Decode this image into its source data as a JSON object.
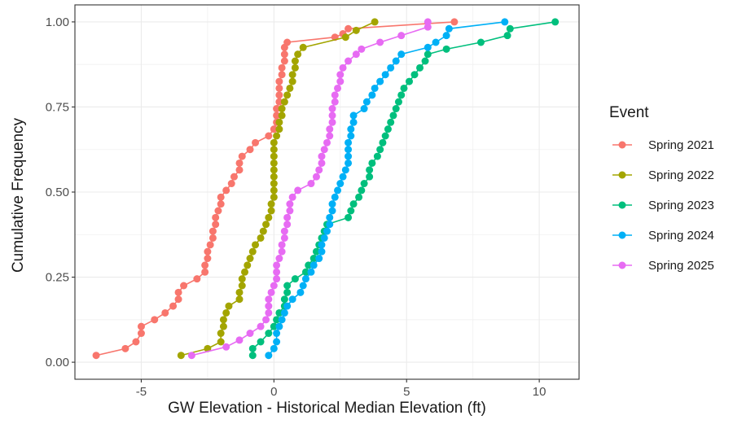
{
  "chart_data": {
    "type": "line",
    "xlabel": "GW Elevation - Historical Median Elevation (ft)",
    "ylabel": "Cumulative Frequency",
    "xlim": [
      -7.5,
      11.5
    ],
    "ylim": [
      -0.05,
      1.05
    ],
    "x_ticks": [
      -5,
      0,
      5,
      10
    ],
    "y_ticks": [
      0,
      0.25,
      0.5,
      0.75,
      1
    ],
    "x_tick_labels": [
      "-5",
      "0",
      "5",
      "10"
    ],
    "y_tick_labels": [
      "0.00",
      "0.25",
      "0.50",
      "0.75",
      "1.00"
    ],
    "grid": true,
    "legend": {
      "title": "Event",
      "position": "right"
    },
    "series": [
      {
        "name": "Spring 2021",
        "color": "#F8766D",
        "points": [
          [
            -6.7,
            0.02
          ],
          [
            -5.6,
            0.04
          ],
          [
            -5.2,
            0.06
          ],
          [
            -5.0,
            0.085
          ],
          [
            -5.0,
            0.105
          ],
          [
            -4.5,
            0.125
          ],
          [
            -4.1,
            0.145
          ],
          [
            -3.8,
            0.165
          ],
          [
            -3.6,
            0.185
          ],
          [
            -3.6,
            0.205
          ],
          [
            -3.4,
            0.225
          ],
          [
            -2.9,
            0.245
          ],
          [
            -2.6,
            0.265
          ],
          [
            -2.6,
            0.285
          ],
          [
            -2.5,
            0.305
          ],
          [
            -2.5,
            0.325
          ],
          [
            -2.4,
            0.345
          ],
          [
            -2.3,
            0.365
          ],
          [
            -2.3,
            0.385
          ],
          [
            -2.2,
            0.405
          ],
          [
            -2.2,
            0.425
          ],
          [
            -2.1,
            0.445
          ],
          [
            -2.0,
            0.465
          ],
          [
            -2.0,
            0.485
          ],
          [
            -1.8,
            0.505
          ],
          [
            -1.6,
            0.525
          ],
          [
            -1.5,
            0.545
          ],
          [
            -1.3,
            0.565
          ],
          [
            -1.3,
            0.585
          ],
          [
            -1.2,
            0.605
          ],
          [
            -0.9,
            0.625
          ],
          [
            -0.7,
            0.645
          ],
          [
            -0.2,
            0.665
          ],
          [
            0.0,
            0.685
          ],
          [
            0.1,
            0.705
          ],
          [
            0.1,
            0.725
          ],
          [
            0.1,
            0.745
          ],
          [
            0.2,
            0.765
          ],
          [
            0.2,
            0.785
          ],
          [
            0.2,
            0.805
          ],
          [
            0.2,
            0.825
          ],
          [
            0.3,
            0.845
          ],
          [
            0.3,
            0.865
          ],
          [
            0.4,
            0.885
          ],
          [
            0.4,
            0.905
          ],
          [
            0.4,
            0.925
          ],
          [
            0.5,
            0.94
          ],
          [
            2.3,
            0.955
          ],
          [
            2.6,
            0.965
          ],
          [
            2.8,
            0.98
          ],
          [
            6.8,
            1.0
          ]
        ]
      },
      {
        "name": "Spring 2022",
        "color": "#A3A500",
        "points": [
          [
            -3.5,
            0.02
          ],
          [
            -2.5,
            0.04
          ],
          [
            -2.0,
            0.06
          ],
          [
            -2.0,
            0.085
          ],
          [
            -1.9,
            0.105
          ],
          [
            -1.9,
            0.125
          ],
          [
            -1.8,
            0.145
          ],
          [
            -1.7,
            0.165
          ],
          [
            -1.3,
            0.185
          ],
          [
            -1.3,
            0.205
          ],
          [
            -1.2,
            0.225
          ],
          [
            -1.2,
            0.245
          ],
          [
            -1.1,
            0.265
          ],
          [
            -1.0,
            0.285
          ],
          [
            -0.9,
            0.305
          ],
          [
            -0.8,
            0.325
          ],
          [
            -0.7,
            0.345
          ],
          [
            -0.5,
            0.365
          ],
          [
            -0.4,
            0.385
          ],
          [
            -0.3,
            0.405
          ],
          [
            -0.2,
            0.425
          ],
          [
            -0.1,
            0.445
          ],
          [
            -0.1,
            0.465
          ],
          [
            0.0,
            0.485
          ],
          [
            0.0,
            0.505
          ],
          [
            0.0,
            0.525
          ],
          [
            0.0,
            0.545
          ],
          [
            0.0,
            0.565
          ],
          [
            0.0,
            0.585
          ],
          [
            0.0,
            0.605
          ],
          [
            0.0,
            0.625
          ],
          [
            0.0,
            0.645
          ],
          [
            0.1,
            0.665
          ],
          [
            0.2,
            0.685
          ],
          [
            0.2,
            0.705
          ],
          [
            0.3,
            0.725
          ],
          [
            0.3,
            0.745
          ],
          [
            0.4,
            0.765
          ],
          [
            0.5,
            0.785
          ],
          [
            0.6,
            0.805
          ],
          [
            0.7,
            0.825
          ],
          [
            0.7,
            0.845
          ],
          [
            0.8,
            0.865
          ],
          [
            0.8,
            0.885
          ],
          [
            0.9,
            0.905
          ],
          [
            1.1,
            0.925
          ],
          [
            2.7,
            0.955
          ],
          [
            3.1,
            0.975
          ],
          [
            3.8,
            1.0
          ]
        ]
      },
      {
        "name": "Spring 2023",
        "color": "#00BF7D",
        "points": [
          [
            -0.8,
            0.02
          ],
          [
            -0.8,
            0.04
          ],
          [
            -0.5,
            0.06
          ],
          [
            -0.2,
            0.085
          ],
          [
            0.0,
            0.105
          ],
          [
            0.1,
            0.125
          ],
          [
            0.2,
            0.145
          ],
          [
            0.4,
            0.165
          ],
          [
            0.4,
            0.185
          ],
          [
            0.5,
            0.205
          ],
          [
            0.5,
            0.225
          ],
          [
            0.8,
            0.245
          ],
          [
            1.2,
            0.265
          ],
          [
            1.3,
            0.285
          ],
          [
            1.5,
            0.305
          ],
          [
            1.6,
            0.325
          ],
          [
            1.7,
            0.345
          ],
          [
            1.8,
            0.365
          ],
          [
            1.9,
            0.385
          ],
          [
            2.0,
            0.405
          ],
          [
            2.8,
            0.425
          ],
          [
            2.9,
            0.445
          ],
          [
            3.0,
            0.465
          ],
          [
            3.2,
            0.485
          ],
          [
            3.3,
            0.505
          ],
          [
            3.4,
            0.525
          ],
          [
            3.6,
            0.545
          ],
          [
            3.6,
            0.565
          ],
          [
            3.7,
            0.585
          ],
          [
            3.9,
            0.605
          ],
          [
            4.0,
            0.625
          ],
          [
            4.1,
            0.645
          ],
          [
            4.2,
            0.665
          ],
          [
            4.3,
            0.685
          ],
          [
            4.4,
            0.705
          ],
          [
            4.5,
            0.725
          ],
          [
            4.6,
            0.745
          ],
          [
            4.7,
            0.765
          ],
          [
            4.8,
            0.785
          ],
          [
            4.9,
            0.805
          ],
          [
            5.1,
            0.825
          ],
          [
            5.3,
            0.845
          ],
          [
            5.5,
            0.865
          ],
          [
            5.7,
            0.885
          ],
          [
            5.8,
            0.905
          ],
          [
            6.5,
            0.92
          ],
          [
            7.8,
            0.94
          ],
          [
            8.8,
            0.96
          ],
          [
            8.9,
            0.98
          ],
          [
            10.6,
            1.0
          ]
        ]
      },
      {
        "name": "Spring 2024",
        "color": "#00B0F6",
        "points": [
          [
            -0.2,
            0.02
          ],
          [
            0.0,
            0.04
          ],
          [
            0.1,
            0.06
          ],
          [
            0.1,
            0.085
          ],
          [
            0.2,
            0.105
          ],
          [
            0.3,
            0.125
          ],
          [
            0.4,
            0.145
          ],
          [
            0.5,
            0.165
          ],
          [
            0.7,
            0.185
          ],
          [
            1.0,
            0.205
          ],
          [
            1.1,
            0.225
          ],
          [
            1.2,
            0.245
          ],
          [
            1.4,
            0.265
          ],
          [
            1.5,
            0.285
          ],
          [
            1.7,
            0.305
          ],
          [
            1.8,
            0.325
          ],
          [
            1.8,
            0.345
          ],
          [
            1.9,
            0.365
          ],
          [
            2.0,
            0.385
          ],
          [
            2.1,
            0.405
          ],
          [
            2.1,
            0.425
          ],
          [
            2.2,
            0.445
          ],
          [
            2.2,
            0.465
          ],
          [
            2.3,
            0.485
          ],
          [
            2.4,
            0.505
          ],
          [
            2.5,
            0.525
          ],
          [
            2.6,
            0.545
          ],
          [
            2.7,
            0.565
          ],
          [
            2.8,
            0.585
          ],
          [
            2.8,
            0.605
          ],
          [
            2.8,
            0.625
          ],
          [
            2.8,
            0.645
          ],
          [
            2.9,
            0.665
          ],
          [
            2.9,
            0.685
          ],
          [
            3.0,
            0.705
          ],
          [
            3.0,
            0.725
          ],
          [
            3.4,
            0.745
          ],
          [
            3.5,
            0.765
          ],
          [
            3.7,
            0.785
          ],
          [
            3.8,
            0.805
          ],
          [
            4.0,
            0.825
          ],
          [
            4.2,
            0.845
          ],
          [
            4.4,
            0.865
          ],
          [
            4.6,
            0.885
          ],
          [
            4.8,
            0.905
          ],
          [
            5.8,
            0.925
          ],
          [
            6.1,
            0.94
          ],
          [
            6.5,
            0.96
          ],
          [
            6.6,
            0.98
          ],
          [
            8.7,
            1.0
          ]
        ]
      },
      {
        "name": "Spring 2025",
        "color": "#E76BF3",
        "points": [
          [
            -3.1,
            0.02
          ],
          [
            -1.8,
            0.045
          ],
          [
            -1.3,
            0.065
          ],
          [
            -0.9,
            0.085
          ],
          [
            -0.5,
            0.105
          ],
          [
            -0.3,
            0.125
          ],
          [
            -0.2,
            0.145
          ],
          [
            -0.2,
            0.165
          ],
          [
            -0.2,
            0.185
          ],
          [
            -0.1,
            0.205
          ],
          [
            0.0,
            0.225
          ],
          [
            0.1,
            0.245
          ],
          [
            0.1,
            0.265
          ],
          [
            0.1,
            0.285
          ],
          [
            0.2,
            0.305
          ],
          [
            0.3,
            0.325
          ],
          [
            0.3,
            0.345
          ],
          [
            0.4,
            0.365
          ],
          [
            0.4,
            0.385
          ],
          [
            0.5,
            0.405
          ],
          [
            0.5,
            0.425
          ],
          [
            0.6,
            0.445
          ],
          [
            0.6,
            0.465
          ],
          [
            0.7,
            0.485
          ],
          [
            0.9,
            0.505
          ],
          [
            1.4,
            0.525
          ],
          [
            1.6,
            0.545
          ],
          [
            1.7,
            0.565
          ],
          [
            1.8,
            0.585
          ],
          [
            1.8,
            0.605
          ],
          [
            1.9,
            0.625
          ],
          [
            2.0,
            0.645
          ],
          [
            2.1,
            0.665
          ],
          [
            2.1,
            0.685
          ],
          [
            2.2,
            0.705
          ],
          [
            2.2,
            0.725
          ],
          [
            2.2,
            0.745
          ],
          [
            2.3,
            0.765
          ],
          [
            2.3,
            0.785
          ],
          [
            2.4,
            0.805
          ],
          [
            2.5,
            0.825
          ],
          [
            2.5,
            0.845
          ],
          [
            2.6,
            0.865
          ],
          [
            2.8,
            0.885
          ],
          [
            3.1,
            0.905
          ],
          [
            3.3,
            0.92
          ],
          [
            4.0,
            0.94
          ],
          [
            4.8,
            0.96
          ],
          [
            5.8,
            0.985
          ],
          [
            5.8,
            1.0
          ]
        ]
      }
    ]
  }
}
